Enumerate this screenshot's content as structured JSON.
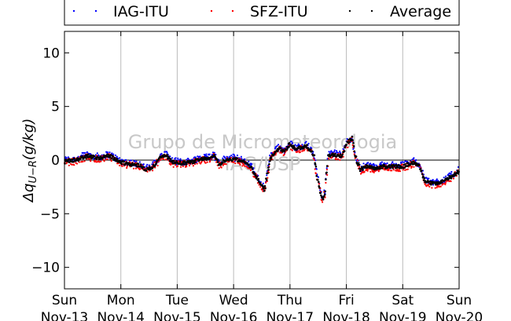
{
  "chart_data": {
    "type": "scatter",
    "ylabel": "Δq_{U−R}(g/kg)",
    "ylim": [
      -12,
      12
    ],
    "yticks": [
      10,
      5,
      0,
      -5,
      -10
    ],
    "ytick_labels": [
      "10",
      "5",
      "0",
      "−5",
      "−10"
    ],
    "xlim": [
      0,
      7
    ],
    "xticks": [
      {
        "day": "Sun",
        "date": "Nov-13"
      },
      {
        "day": "Mon",
        "date": "Nov-14"
      },
      {
        "day": "Tue",
        "date": "Nov-15"
      },
      {
        "day": "Wed",
        "date": "Nov-16"
      },
      {
        "day": "Thu",
        "date": "Nov-17"
      },
      {
        "day": "Fri",
        "date": "Nov-18"
      },
      {
        "day": "Sat",
        "date": "Nov-19"
      },
      {
        "day": "Sun",
        "date": "Nov-20"
      }
    ],
    "watermark": [
      "Grupo de Micrometeorologia",
      "IAG/USP"
    ],
    "zero_line": true,
    "vertical_grid": true,
    "legend_position": "top",
    "series": [
      {
        "name": "IAG-ITU",
        "color": "#0000ff",
        "dy": 0.12,
        "noise": 0.32
      },
      {
        "name": "SFZ-ITU",
        "color": "#ff0000",
        "dy": -0.12,
        "noise": 0.32
      },
      {
        "name": "Average",
        "color": "#000000",
        "dy": 0.0,
        "noise": 0.16
      }
    ],
    "profile": [
      [
        0.0,
        -0.1
      ],
      [
        0.2,
        0.0
      ],
      [
        0.4,
        0.4
      ],
      [
        0.6,
        0.2
      ],
      [
        0.8,
        0.4
      ],
      [
        1.0,
        -0.2
      ],
      [
        1.2,
        -0.4
      ],
      [
        1.35,
        -0.5
      ],
      [
        1.45,
        -0.9
      ],
      [
        1.55,
        -0.7
      ],
      [
        1.7,
        0.2
      ],
      [
        1.8,
        0.5
      ],
      [
        1.9,
        -0.2
      ],
      [
        2.1,
        -0.3
      ],
      [
        2.25,
        -0.2
      ],
      [
        2.4,
        0.1
      ],
      [
        2.55,
        0.2
      ],
      [
        2.65,
        0.4
      ],
      [
        2.75,
        -0.4
      ],
      [
        2.85,
        0.0
      ],
      [
        3.0,
        0.1
      ],
      [
        3.1,
        0.0
      ],
      [
        3.2,
        -0.2
      ],
      [
        3.3,
        -0.6
      ],
      [
        3.4,
        -1.5
      ],
      [
        3.48,
        -2.3
      ],
      [
        3.55,
        -2.8
      ],
      [
        3.65,
        0.2
      ],
      [
        3.8,
        1.1
      ],
      [
        3.9,
        0.8
      ],
      [
        4.0,
        1.5
      ],
      [
        4.1,
        1.0
      ],
      [
        4.2,
        1.2
      ],
      [
        4.3,
        1.3
      ],
      [
        4.42,
        0.5
      ],
      [
        4.5,
        -2.0
      ],
      [
        4.58,
        -3.8
      ],
      [
        4.62,
        -3.0
      ],
      [
        4.68,
        0.4
      ],
      [
        4.8,
        0.5
      ],
      [
        4.92,
        0.4
      ],
      [
        5.0,
        1.5
      ],
      [
        5.1,
        2.0
      ],
      [
        5.15,
        0.4
      ],
      [
        5.25,
        -0.9
      ],
      [
        5.35,
        -0.6
      ],
      [
        5.5,
        -0.8
      ],
      [
        5.65,
        -0.6
      ],
      [
        5.8,
        -0.6
      ],
      [
        6.0,
        -0.6
      ],
      [
        6.2,
        -0.2
      ],
      [
        6.3,
        -0.5
      ],
      [
        6.4,
        -2.0
      ],
      [
        6.55,
        -2.2
      ],
      [
        6.7,
        -2.0
      ],
      [
        6.85,
        -1.6
      ],
      [
        7.0,
        -1.0
      ]
    ]
  }
}
